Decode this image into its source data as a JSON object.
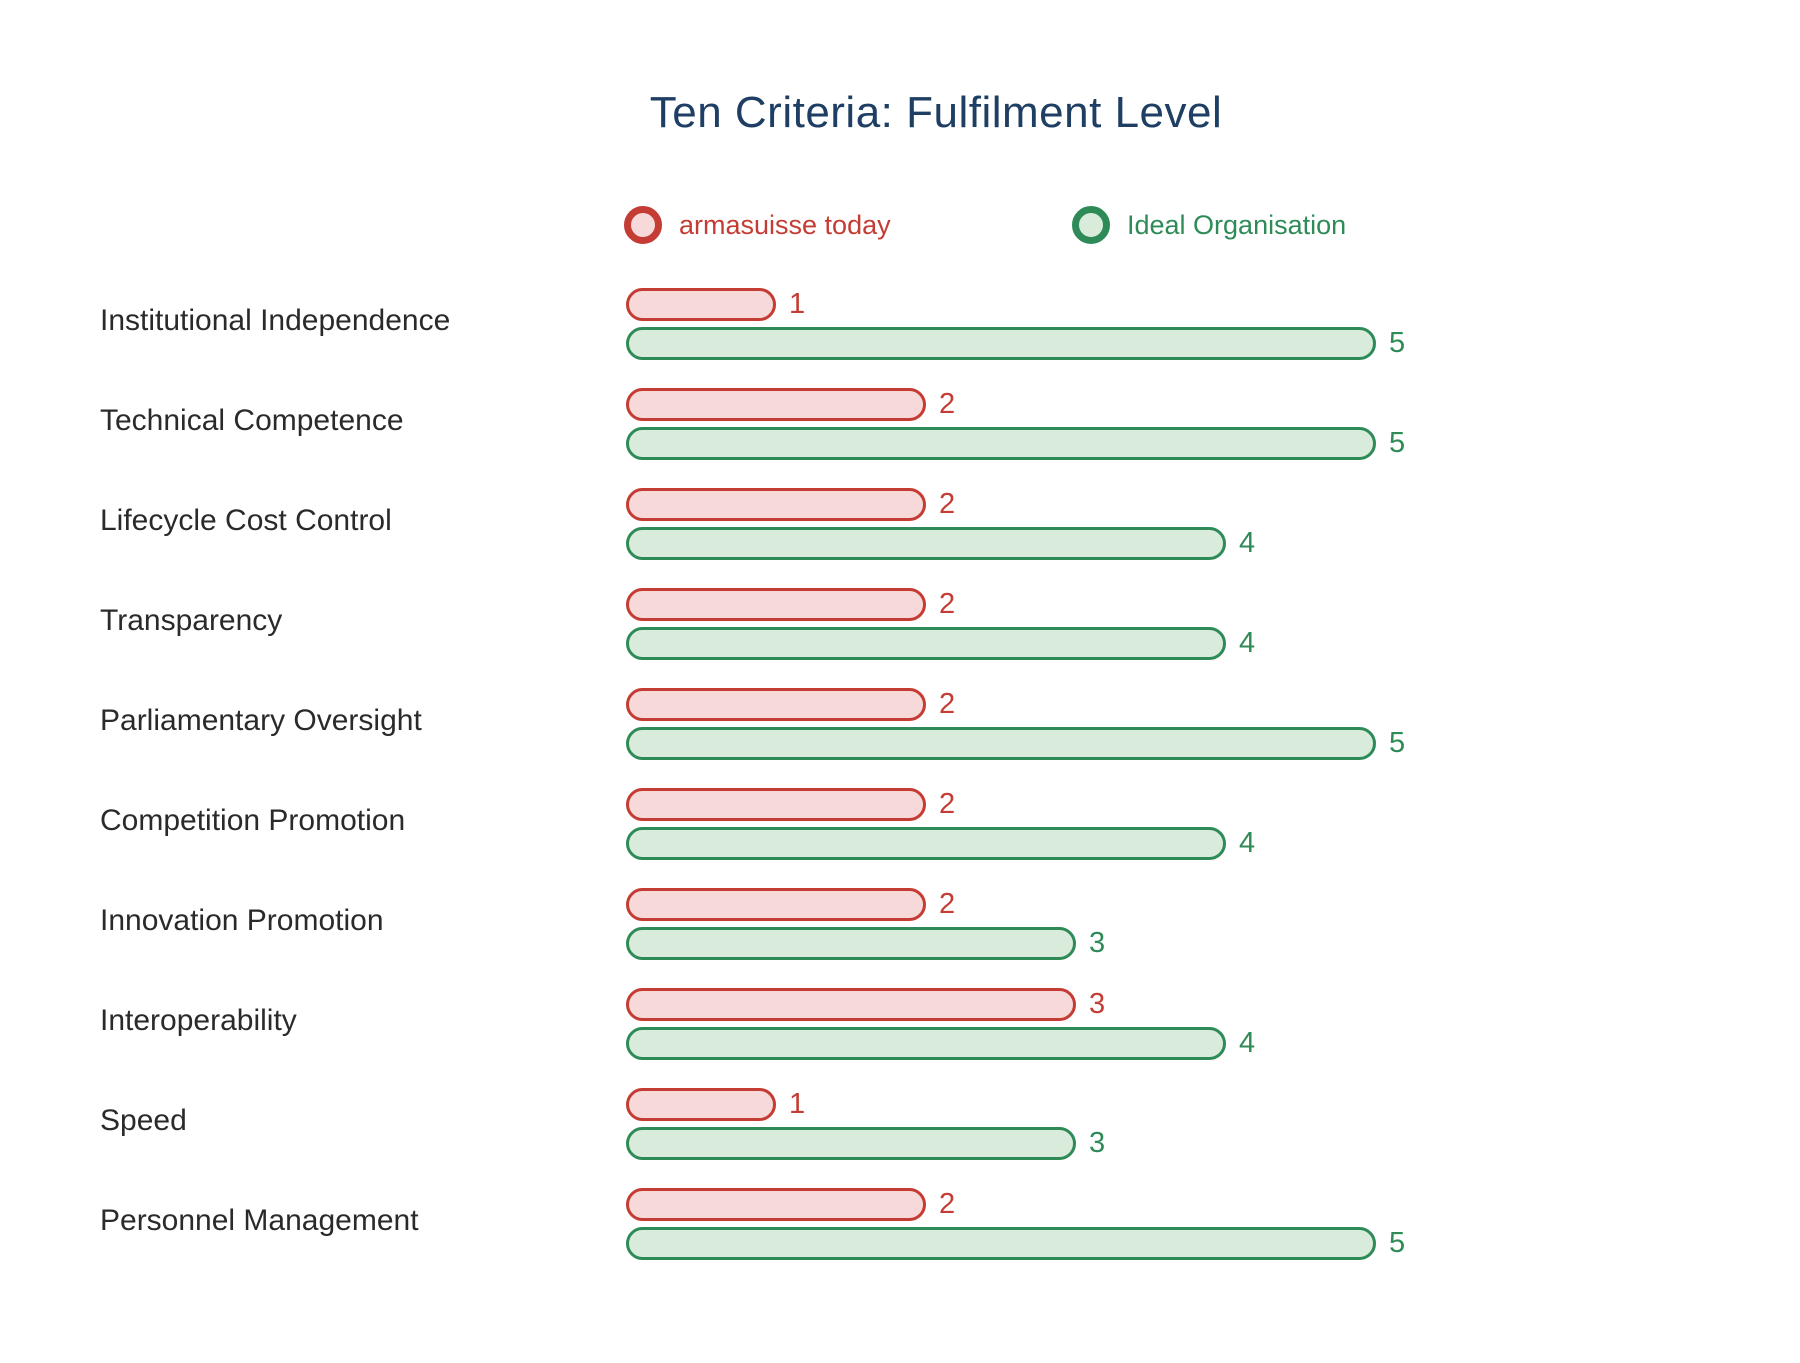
{
  "title": "Ten Criteria: Fulfilment Level",
  "colors": {
    "today_stroke": "#c43c33",
    "today_fill": "#f7d9da",
    "ideal_stroke": "#2e8b57",
    "ideal_fill": "#d9ecdc",
    "title_text": "#1e3e64",
    "category_text": "#2a2a2a"
  },
  "chart_data": {
    "type": "bar",
    "orientation": "horizontal",
    "title": "Ten Criteria: Fulfilment Level",
    "categories": [
      "Institutional Independence",
      "Technical Competence",
      "Lifecycle Cost Control",
      "Transparency",
      "Parliamentary Oversight",
      "Competition Promotion",
      "Innovation Promotion",
      "Interoperability",
      "Speed",
      "Personnel Management"
    ],
    "series": [
      {
        "name": "armasuisse today",
        "color": "#c43c33",
        "values": [
          1,
          2,
          2,
          2,
          2,
          2,
          2,
          3,
          1,
          2
        ]
      },
      {
        "name": "Ideal Organisation",
        "color": "#2e8b57",
        "values": [
          5,
          5,
          4,
          4,
          5,
          4,
          3,
          4,
          3,
          5
        ]
      }
    ],
    "xlim": [
      0,
      5
    ],
    "value_labels": true,
    "grid": false,
    "legend_position": "top"
  }
}
